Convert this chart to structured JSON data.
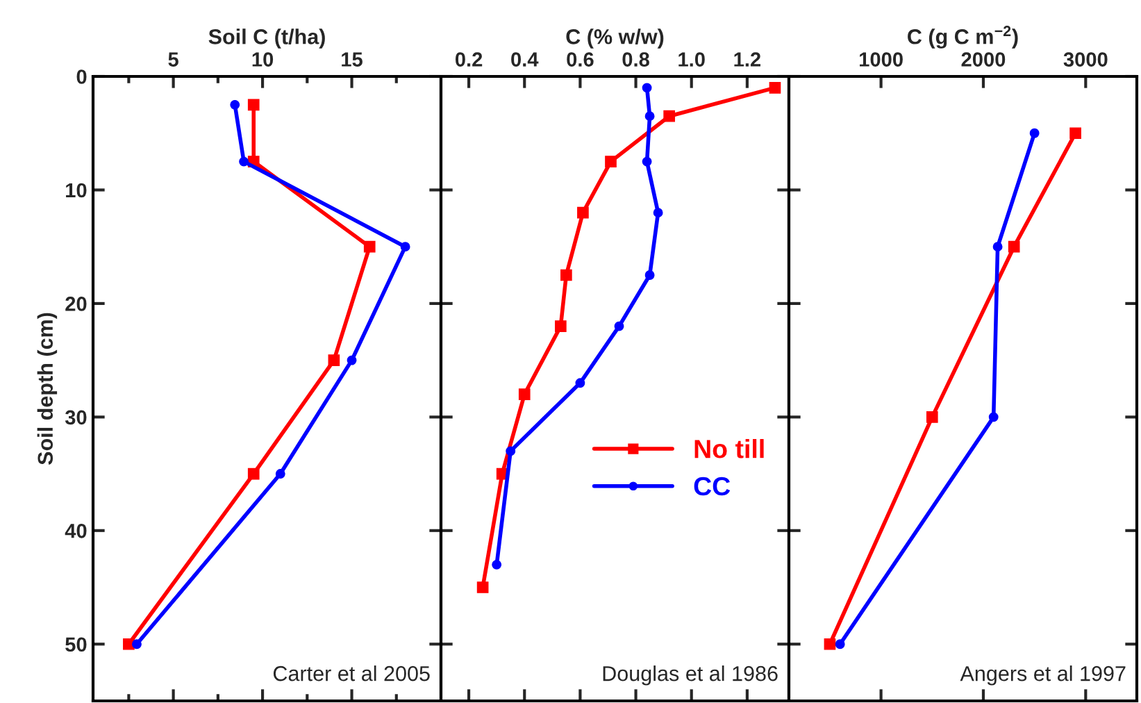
{
  "chart_data": [
    {
      "type": "line",
      "xlabel": "Soil C (t/ha)",
      "ylabel": "Soil depth (cm)",
      "xlim": [
        0.5,
        20
      ],
      "ylim": [
        55,
        0
      ],
      "xticks": [
        {
          "value": 2.5,
          "label": null
        },
        5,
        {
          "value": 7.5,
          "label": null
        },
        10,
        {
          "value": 12.5,
          "label": null
        },
        15,
        {
          "value": 17.5,
          "label": null
        }
      ],
      "yticks": [
        0,
        10,
        20,
        30,
        40,
        50
      ],
      "grid": false,
      "legend": false,
      "annotations": [
        "Carter et al 2005"
      ],
      "series": [
        {
          "color": "#ff0000",
          "marker": "square",
          "x": [
            9.5,
            9.5,
            16.0,
            14.0,
            9.5,
            2.5
          ],
          "values": [
            2.5,
            7.5,
            15,
            25,
            35,
            50
          ]
        },
        {
          "color": "#0000ff",
          "marker": "circle",
          "x": [
            8.45,
            8.95,
            18.0,
            15.0,
            11.0,
            2.95
          ],
          "values": [
            2.5,
            7.5,
            15,
            25,
            35,
            50
          ]
        }
      ]
    },
    {
      "type": "line",
      "xlabel": "C (% w/w)",
      "xlim": [
        0.1,
        1.35
      ],
      "ylim": [
        55,
        0
      ],
      "xticks": [
        {
          "value": 0.2,
          "label": "0.2"
        },
        {
          "value": 0.4,
          "label": "0.4"
        },
        {
          "value": 0.6,
          "label": "0.6"
        },
        {
          "value": 0.8,
          "label": "0.8"
        },
        {
          "value": 1.0,
          "label": "1.0"
        },
        {
          "value": 1.2,
          "label": "1.2"
        }
      ],
      "yticks": [
        0,
        10,
        20,
        30,
        40,
        50
      ],
      "tick_labels": "x",
      "grid": false,
      "legend": "right",
      "annotations": [
        "Douglas et al 1986"
      ],
      "series": [
        {
          "name": "No till",
          "color": "#ff0000",
          "marker": "square",
          "x": [
            1.3,
            0.92,
            0.71,
            0.61,
            0.55,
            0.53,
            0.4,
            0.32,
            0.25
          ],
          "values": [
            1,
            3.5,
            7.5,
            12,
            17.5,
            22,
            28,
            35,
            45
          ]
        },
        {
          "name": "CC",
          "color": "#0000ff",
          "marker": "circle",
          "x": [
            0.84,
            0.85,
            0.84,
            0.88,
            0.85,
            0.74,
            0.6,
            0.35,
            0.3
          ],
          "values": [
            1,
            3.5,
            7.5,
            12,
            17.5,
            22,
            27,
            33,
            43
          ]
        }
      ]
    },
    {
      "type": "line",
      "xlabel": "C (g C m$^{−2}$)",
      "xlim": [
        100,
        3500
      ],
      "ylim": [
        55,
        0
      ],
      "xticks": [
        1000,
        2000,
        3000
      ],
      "yticks": [
        0,
        10,
        20,
        30,
        40,
        50
      ],
      "tick_labels": "x",
      "grid": false,
      "legend": false,
      "annotations": [
        "Angers et al 1997"
      ],
      "series": [
        {
          "color": "#ff0000",
          "marker": "square",
          "x": [
            2900,
            2300,
            1500,
            500
          ],
          "values": [
            5,
            15,
            30,
            50
          ]
        },
        {
          "color": "#0000ff",
          "marker": "circle",
          "x": [
            2500,
            2140,
            2100,
            600
          ],
          "values": [
            5,
            15,
            30,
            50
          ]
        }
      ]
    }
  ]
}
